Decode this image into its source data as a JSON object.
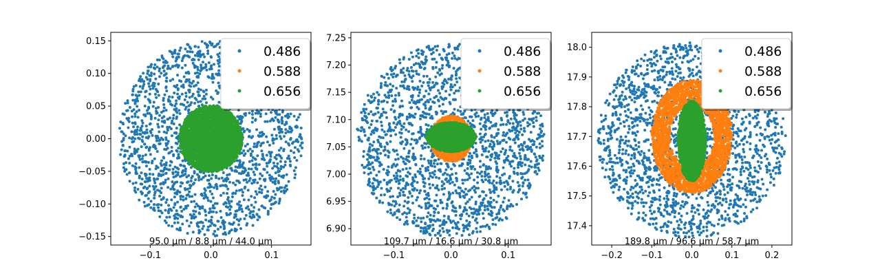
{
  "chart_data": [
    {
      "type": "scatter",
      "title": "",
      "xlabel": "",
      "ylabel": "",
      "xlim": [
        -0.165,
        0.165
      ],
      "ylim": [
        -0.163,
        0.163
      ],
      "xticks": [
        -0.1,
        0.0,
        0.1
      ],
      "xtick_labels": [
        "−0.1",
        "0.0",
        "0.1"
      ],
      "yticks": [
        -0.15,
        -0.1,
        -0.05,
        0.0,
        0.05,
        0.1,
        0.15
      ],
      "ytick_labels": [
        "−0.15",
        "−0.10",
        "−0.05",
        "0.00",
        "0.05",
        "0.10",
        "0.15"
      ],
      "annotation": "95.0 μm / 8.8 μm / 44.0 μm",
      "legend_position": "upper right",
      "series": [
        {
          "name": "0.486",
          "color": "#1f77b4",
          "shape": "disk",
          "cx": 0.0,
          "cy": 0.0,
          "rx": 0.152,
          "ry": 0.15,
          "points": 2000
        },
        {
          "name": "0.588",
          "color": "#ff7f0e",
          "shape": "disk",
          "cx": 0.0,
          "cy": 0.0,
          "rx": 0.03,
          "ry": 0.03,
          "points": 150
        },
        {
          "name": "0.656",
          "color": "#2ca02c",
          "shape": "disk",
          "cx": 0.0,
          "cy": 0.0,
          "rx": 0.052,
          "ry": 0.051,
          "points": 3000
        }
      ]
    },
    {
      "type": "scatter",
      "title": "",
      "xlabel": "",
      "ylabel": "",
      "xlim": [
        -0.175,
        0.175
      ],
      "ylim": [
        6.87,
        7.26
      ],
      "xticks": [
        -0.1,
        0.0,
        0.1
      ],
      "xtick_labels": [
        "−0.1",
        "0.0",
        "0.1"
      ],
      "yticks": [
        6.9,
        6.95,
        7.0,
        7.05,
        7.1,
        7.15,
        7.2,
        7.25
      ],
      "ytick_labels": [
        "6.90",
        "6.95",
        "7.00",
        "7.05",
        "7.10",
        "7.15",
        "7.20",
        "7.25"
      ],
      "annotation": "109.7 μm / 16.6 μm / 30.8 μm",
      "legend_position": "upper right",
      "series": [
        {
          "name": "0.486",
          "color": "#1f77b4",
          "shape": "disk",
          "cx": 0.0,
          "cy": 7.062,
          "rx": 0.165,
          "ry": 0.178,
          "points": 2000
        },
        {
          "name": "0.588",
          "color": "#ff7f0e",
          "shape": "disk",
          "cx": 0.0,
          "cy": 7.065,
          "rx": 0.036,
          "ry": 0.042,
          "points": 1500
        },
        {
          "name": "0.656",
          "color": "#2ca02c",
          "shape": "disk",
          "cx": 0.0,
          "cy": 7.068,
          "rx": 0.043,
          "ry": 0.027,
          "points": 2500
        }
      ]
    },
    {
      "type": "scatter",
      "title": "",
      "xlabel": "",
      "ylabel": "",
      "xlim": [
        -0.25,
        0.25
      ],
      "ylim": [
        17.335,
        18.05
      ],
      "xticks": [
        -0.2,
        -0.1,
        0.0,
        0.1,
        0.2
      ],
      "xtick_labels": [
        "−0.2",
        "−0.1",
        "0.0",
        "0.1",
        "0.2"
      ],
      "yticks": [
        17.4,
        17.5,
        17.6,
        17.7,
        17.8,
        17.9,
        18.0
      ],
      "ytick_labels": [
        "17.4",
        "17.5",
        "17.6",
        "17.7",
        "17.8",
        "17.9",
        "18.0"
      ],
      "annotation": "189.8 μm / 96.6 μm / 58.7 μm",
      "legend_position": "upper right",
      "series": [
        {
          "name": "0.486",
          "color": "#1f77b4",
          "shape": "disk",
          "cx": 0.0,
          "cy": 17.69,
          "rx": 0.235,
          "ry": 0.33,
          "points": 2000
        },
        {
          "name": "0.588",
          "color": "#ff7f0e",
          "shape": "ring",
          "cx": 0.0,
          "cy": 17.7,
          "rx": 0.1,
          "ry": 0.19,
          "inner": 0.55,
          "points": 2500
        },
        {
          "name": "0.656",
          "color": "#2ca02c",
          "shape": "disk",
          "cx": 0.0,
          "cy": 17.685,
          "rx": 0.035,
          "ry": 0.135,
          "points": 2000
        }
      ]
    }
  ]
}
